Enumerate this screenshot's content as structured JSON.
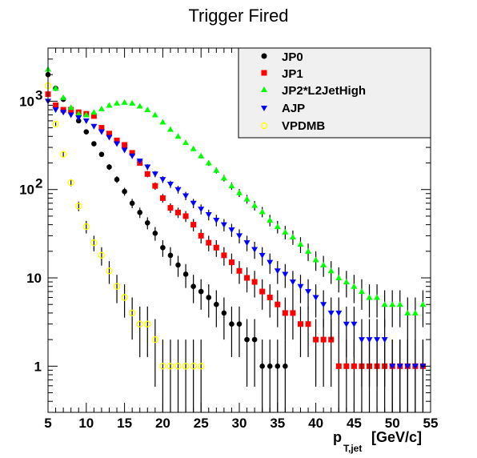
{
  "chart_data": {
    "type": "scatter",
    "title": "Trigger Fired",
    "xlabel": {
      "main": "p",
      "sub": "T,jet",
      "unit": "[GeV/c]"
    },
    "ylabel": "",
    "xlim": [
      5,
      55
    ],
    "ylim": [
      0.3,
      4000
    ],
    "yscale": "log",
    "grid": false,
    "legend_position": "top-right",
    "x_ticks": [
      "5",
      "10",
      "15",
      "20",
      "25",
      "30",
      "35",
      "40",
      "45",
      "50",
      "55"
    ],
    "y_ticks": [
      {
        "value": 1,
        "label": "1"
      },
      {
        "value": 10,
        "label": "10"
      },
      {
        "value": 100,
        "label": "10",
        "exp": "2"
      },
      {
        "value": 1000,
        "label": "10",
        "exp": "3"
      }
    ],
    "series": [
      {
        "name": "JP0",
        "color": "#000000",
        "marker": "circle-filled",
        "x": [
          5,
          6,
          7,
          8,
          9,
          10,
          11,
          12,
          13,
          14,
          15,
          16,
          17,
          18,
          19,
          20,
          21,
          22,
          23,
          24,
          25,
          26,
          27,
          28,
          29,
          30,
          31,
          32,
          33,
          34,
          35,
          36
        ],
        "y": [
          2000,
          1400,
          1050,
          800,
          600,
          450,
          330,
          250,
          180,
          130,
          95,
          70,
          55,
          42,
          32,
          22,
          18,
          14,
          11,
          8,
          7,
          6,
          5,
          4,
          3,
          3,
          2,
          2,
          1,
          1,
          1,
          1
        ]
      },
      {
        "name": "JP1",
        "color": "#ff0000",
        "marker": "square",
        "x": [
          5,
          6,
          7,
          8,
          9,
          10,
          11,
          12,
          13,
          14,
          15,
          16,
          17,
          18,
          19,
          20,
          21,
          22,
          23,
          24,
          25,
          26,
          27,
          28,
          29,
          30,
          31,
          32,
          33,
          34,
          35,
          36,
          37,
          38,
          39,
          40,
          41,
          42,
          43,
          44,
          45,
          46,
          47,
          48,
          49,
          50,
          51,
          52,
          53,
          54
        ],
        "y": [
          1200,
          900,
          800,
          800,
          750,
          720,
          680,
          500,
          430,
          360,
          320,
          260,
          200,
          150,
          110,
          80,
          62,
          55,
          50,
          40,
          30,
          25,
          22,
          18,
          15,
          12,
          10,
          9,
          7,
          6,
          5,
          4,
          4,
          3,
          3,
          2,
          2,
          2,
          1,
          1,
          1,
          1,
          1,
          1,
          1,
          1,
          1,
          1,
          1,
          1
        ]
      },
      {
        "name": "JP2*L2JetHigh",
        "color": "#00ff00",
        "marker": "triangle-up",
        "x": [
          5,
          6,
          7,
          8,
          9,
          10,
          11,
          12,
          13,
          14,
          15,
          16,
          17,
          18,
          19,
          20,
          21,
          22,
          23,
          24,
          25,
          26,
          27,
          28,
          29,
          30,
          31,
          32,
          33,
          34,
          35,
          36,
          37,
          38,
          39,
          40,
          41,
          42,
          43,
          44,
          45,
          46,
          47,
          48,
          49,
          50,
          51,
          52,
          53,
          54
        ],
        "y": [
          2300,
          1400,
          1100,
          850,
          720,
          700,
          750,
          820,
          900,
          950,
          970,
          950,
          880,
          800,
          700,
          580,
          480,
          400,
          340,
          290,
          240,
          200,
          165,
          135,
          110,
          92,
          78,
          66,
          56,
          45,
          38,
          33,
          29,
          24,
          20,
          16,
          14,
          12,
          10,
          9,
          8,
          7,
          6,
          6,
          5,
          5,
          5,
          4,
          4,
          5
        ]
      },
      {
        "name": "AJP",
        "color": "#0000ff",
        "marker": "triangle-down",
        "x": [
          5,
          6,
          7,
          8,
          9,
          10,
          11,
          12,
          13,
          14,
          15,
          16,
          17,
          18,
          19,
          20,
          21,
          22,
          23,
          24,
          25,
          26,
          27,
          28,
          29,
          30,
          31,
          32,
          33,
          34,
          35,
          36,
          37,
          38,
          39,
          40,
          41,
          42,
          43,
          44,
          45,
          46,
          47,
          48,
          49,
          50,
          51,
          52,
          53,
          54
        ],
        "y": [
          1000,
          800,
          750,
          700,
          650,
          600,
          520,
          450,
          390,
          330,
          280,
          240,
          210,
          180,
          150,
          130,
          115,
          100,
          85,
          70,
          60,
          52,
          45,
          40,
          35,
          30,
          25,
          21,
          18,
          15,
          12,
          11,
          9,
          8,
          7,
          6,
          5,
          4,
          4,
          3,
          3,
          2,
          2,
          2,
          2,
          1,
          1,
          1,
          1,
          1
        ]
      },
      {
        "name": "VPDMB",
        "color": "#ffff00",
        "marker": "circle-open",
        "x": [
          5,
          6,
          7,
          8,
          9,
          10,
          11,
          12,
          13,
          14,
          15,
          16,
          17,
          18,
          19,
          20,
          21,
          22,
          23,
          24,
          25
        ],
        "y": [
          1500,
          550,
          250,
          120,
          65,
          38,
          25,
          18,
          12,
          8,
          6,
          4,
          3,
          3,
          2,
          1,
          1,
          1,
          1,
          1,
          1
        ]
      }
    ]
  }
}
